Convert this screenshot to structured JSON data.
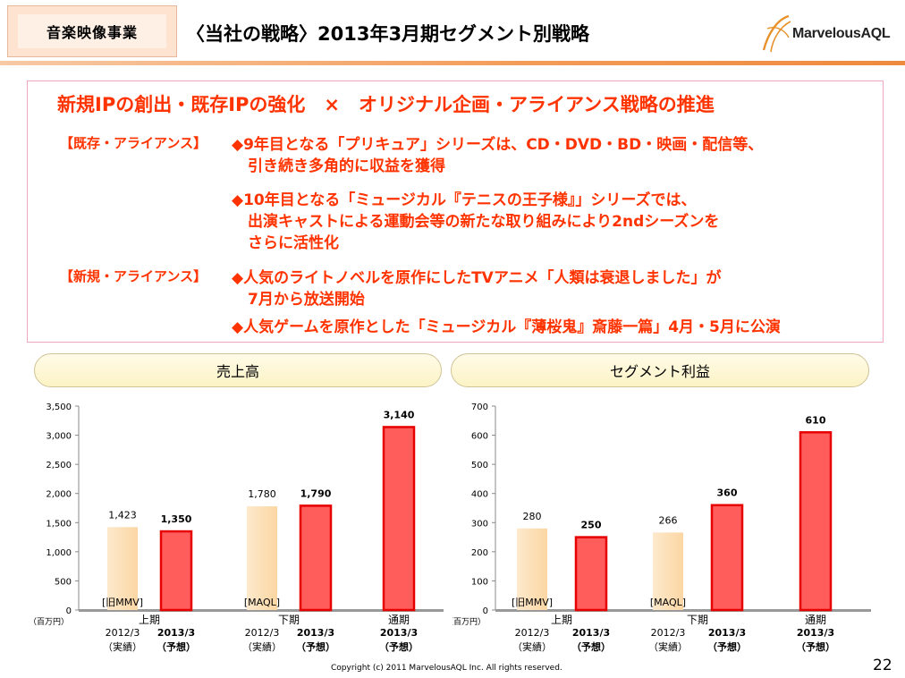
{
  "header": {
    "section_tag": "音楽映像事業",
    "title": "〈当社の戦略〉2013年3月期セグメント別戦略",
    "logo_text": "MarvelousAQL"
  },
  "strategy": {
    "headline": "新規IPの創出・既存IPの強化　×　オリジナル企画・アライアンス戦略の推進",
    "tag_existing": "【既存・アライアンス】",
    "tag_new": "【新規・アライアンス】",
    "bullet1_line1": "◆9年目となる「プリキュア」シリーズは、CD・DVD・BD・映画・配信等、",
    "bullet1_line2": "引き続き多角的に収益を獲得",
    "bullet2_line1": "◆10年目となる「ミュージカル『テニスの王子様』」シリーズでは、",
    "bullet2_line2": "出演キャストによる運動会等の新たな取り組みにより2ndシーズンを",
    "bullet2_line3": "さらに活性化",
    "bullet3_line1": "◆人気のライトノベルを原作にしたTVアニメ「人類は衰退しました」が",
    "bullet3_line2": "7月から放送開始",
    "bullet4_line1": "◆人気ゲームを原作とした「ミュージカル『薄桜鬼』斎藤一篇」4月・5月に公演"
  },
  "panels": {
    "left_title": "売上高",
    "right_title": "セグメント利益"
  },
  "colors": {
    "actual_fill": "#fbd6a3",
    "actual_fill_light": "#fde9cc",
    "forecast_fill": "#ff5c5c",
    "forecast_stroke": "#e60000",
    "accent_text": "#ff3300"
  },
  "chart_data": [
    {
      "type": "bar",
      "unit_label": "（百万円）",
      "ylim": [
        0,
        3500
      ],
      "yticks": [
        "0",
        "500",
        "1,000",
        "1,500",
        "2,000",
        "2,500",
        "3,000",
        "3,500"
      ],
      "groups": [
        {
          "period": "上期",
          "bars": [
            {
              "value": 1423,
              "label": "1,423",
              "kind": "actual",
              "cat_line1": "2012/3",
              "cat_line2": "（実績）",
              "note": "[旧MMV]"
            },
            {
              "value": 1350,
              "label": "1,350",
              "kind": "forecast",
              "cat_line1": "2013/3",
              "cat_line2": "（予想）"
            }
          ]
        },
        {
          "period": "下期",
          "bars": [
            {
              "value": 1780,
              "label": "1,780",
              "kind": "actual",
              "cat_line1": "2012/3",
              "cat_line2": "（実績）",
              "note": "[MAQL]"
            },
            {
              "value": 1790,
              "label": "1,790",
              "kind": "forecast",
              "cat_line1": "2013/3",
              "cat_line2": "（予想）"
            }
          ]
        },
        {
          "period": "通期",
          "bars": [
            {
              "value": 3140,
              "label": "3,140",
              "kind": "forecast",
              "cat_line1": "2013/3",
              "cat_line2": "（予想）"
            }
          ]
        }
      ]
    },
    {
      "type": "bar",
      "unit_label": "（百万円）",
      "ylim": [
        0,
        700
      ],
      "yticks": [
        "0",
        "100",
        "200",
        "300",
        "400",
        "500",
        "600",
        "700"
      ],
      "groups": [
        {
          "period": "上期",
          "bars": [
            {
              "value": 280,
              "label": "280",
              "kind": "actual",
              "cat_line1": "2012/3",
              "cat_line2": "（実績）",
              "note": "[旧MMV]"
            },
            {
              "value": 250,
              "label": "250",
              "kind": "forecast",
              "cat_line1": "2013/3",
              "cat_line2": "（予想）"
            }
          ]
        },
        {
          "period": "下期",
          "bars": [
            {
              "value": 266,
              "label": "266",
              "kind": "actual",
              "cat_line1": "2012/3",
              "cat_line2": "（実績）",
              "note": "[MAQL]"
            },
            {
              "value": 360,
              "label": "360",
              "kind": "forecast",
              "cat_line1": "2013/3",
              "cat_line2": "（予想）"
            }
          ]
        },
        {
          "period": "通期",
          "bars": [
            {
              "value": 610,
              "label": "610",
              "kind": "forecast",
              "cat_line1": "2013/3",
              "cat_line2": "（予想）"
            }
          ]
        }
      ]
    }
  ],
  "footer": {
    "copyright": "Copyright (c) 2011 MarvelousAQL Inc. All rights reserved.",
    "page_number": "22"
  }
}
